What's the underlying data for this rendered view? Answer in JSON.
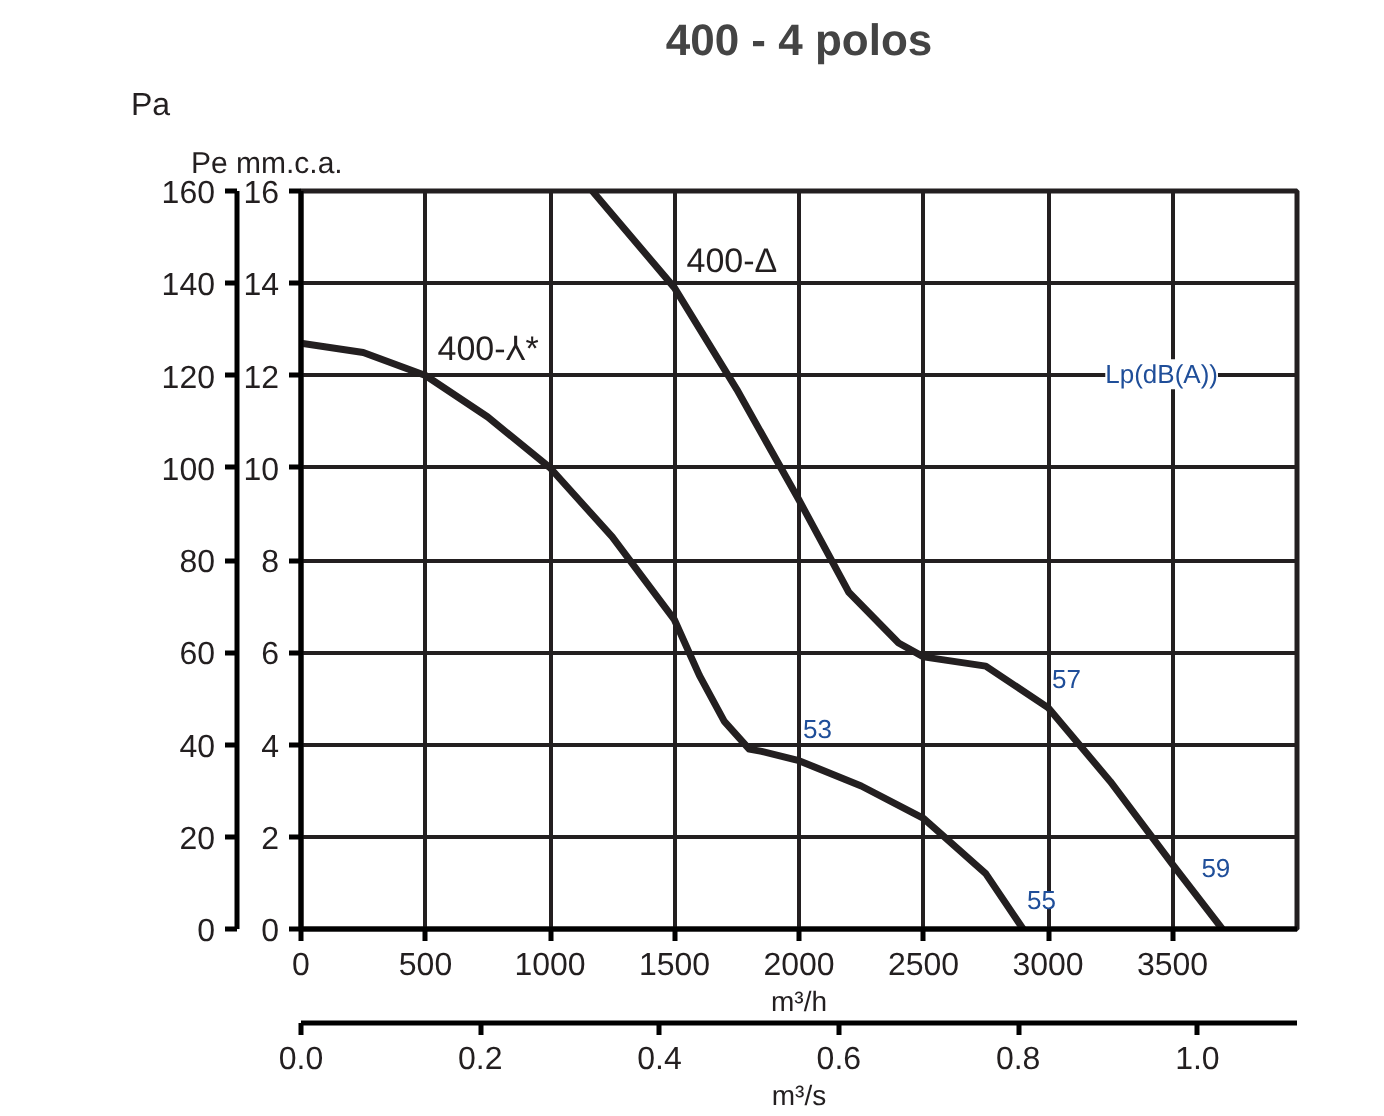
{
  "chart_data": {
    "type": "line",
    "title": "400 - 4 polos",
    "xlabel": "m³/h",
    "x2label": "m³/s",
    "ylabel": "Pa",
    "y2label": "Pe mm.c.a.",
    "xlim": [
      0,
      4000
    ],
    "xticks": [
      0,
      500,
      1000,
      1500,
      2000,
      2500,
      3000,
      3500
    ],
    "x2lim": [
      0,
      1.1111
    ],
    "x2ticks": [
      {
        "value": 0,
        "label": "0.0"
      },
      0.2,
      0.4,
      0.6,
      0.8,
      {
        "value": 1,
        "label": "1.0"
      }
    ],
    "ylim": [
      0,
      160
    ],
    "yticks": [
      0,
      20,
      40,
      60,
      80,
      100,
      120,
      140,
      160
    ],
    "y2lim": [
      0,
      16
    ],
    "y2ticks": [
      0,
      2,
      4,
      6,
      8,
      10,
      12,
      14,
      16
    ],
    "grid": true,
    "line_style": "solid",
    "marker": "none",
    "series": [
      {
        "name": "400-⅄*",
        "color": "#231f20",
        "x": [
          0,
          250,
          500,
          750,
          1000,
          1250,
          1500,
          1600,
          1700,
          1800,
          1850,
          2000,
          2250,
          2500,
          2750,
          2900
        ],
        "values": [
          127,
          125,
          120,
          111,
          100,
          85,
          67,
          55,
          45,
          39,
          38.5,
          36.5,
          31,
          24,
          12,
          0
        ]
      },
      {
        "name": "400-Δ",
        "color": "#231f20",
        "x": [
          1170,
          1500,
          1750,
          2000,
          2200,
          2400,
          2500,
          2750,
          3000,
          3250,
          3500,
          3700
        ],
        "values": [
          160,
          139,
          117,
          93,
          73,
          62,
          59,
          57,
          48,
          32,
          14,
          0
        ]
      }
    ],
    "annotations": [
      {
        "text": "53",
        "x": 2000,
        "y": 37
      },
      {
        "text": "55",
        "x": 2900,
        "y": 0
      },
      {
        "text": "57",
        "x": 3000,
        "y": 48
      },
      {
        "text": "59",
        "x": 3600,
        "y": 7
      },
      "Lp(dB(A))"
    ]
  }
}
